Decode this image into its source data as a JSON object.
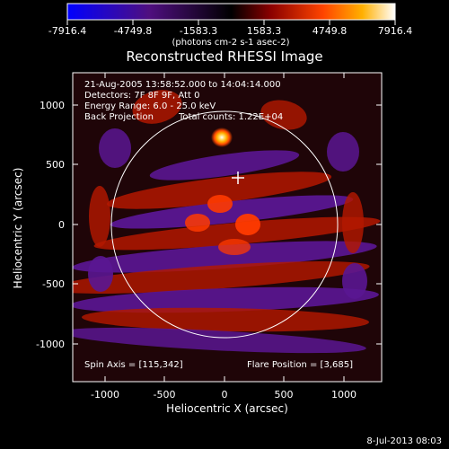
{
  "window": {
    "footer_timestamp": "8-Jul-2013 08:03"
  },
  "colorbar": {
    "ticks": [
      "-7916.4",
      "-4749.8",
      "-1583.3",
      "1583.3",
      "4749.8",
      "7916.4"
    ],
    "range": [
      -7916.4,
      7916.4
    ],
    "units": "(photons cm-2 s-1 asec-2)",
    "colors": [
      "#0000ff",
      "#4f0f7f",
      "#000000",
      "#8a0000",
      "#ff4400",
      "#ffb000",
      "#ffffff"
    ]
  },
  "header": {
    "title": "Reconstructed RHESSI Image"
  },
  "plot": {
    "xlabel": "Heliocentric X (arcsec)",
    "ylabel": "Heliocentric Y (arcsec)",
    "xlim": [
      -1300,
      1300
    ],
    "ylim": [
      -1300,
      1300
    ],
    "xticks": [
      "-1000",
      "-500",
      "0",
      "500",
      "1000"
    ],
    "yticks": [
      "1000",
      "500",
      "0",
      "-500",
      "-1000"
    ],
    "annotations": [
      "21-Aug-2005 13:58:52.000 to 14:04:14.000",
      "Detectors: 7F 8F 9F, Att 0",
      "Energy Range: 6.0 - 25.0 keV",
      "Back Projection",
      "Total counts: 1.22E+04"
    ],
    "spin_axis_label": "Spin Axis = [115,342]",
    "flare_position_label": "Flare Position = [3,685]"
  },
  "chart_data": {
    "type": "heatmap",
    "title": "Reconstructed RHESSI Image",
    "xlabel": "Heliocentric X (arcsec)",
    "ylabel": "Heliocentric Y (arcsec)",
    "xlim": [
      -1300,
      1300
    ],
    "ylim": [
      -1300,
      1300
    ],
    "flare_position": [
      3,
      685
    ],
    "spin_axis": [
      115,
      342
    ],
    "solar_limb_radius": 950
  }
}
